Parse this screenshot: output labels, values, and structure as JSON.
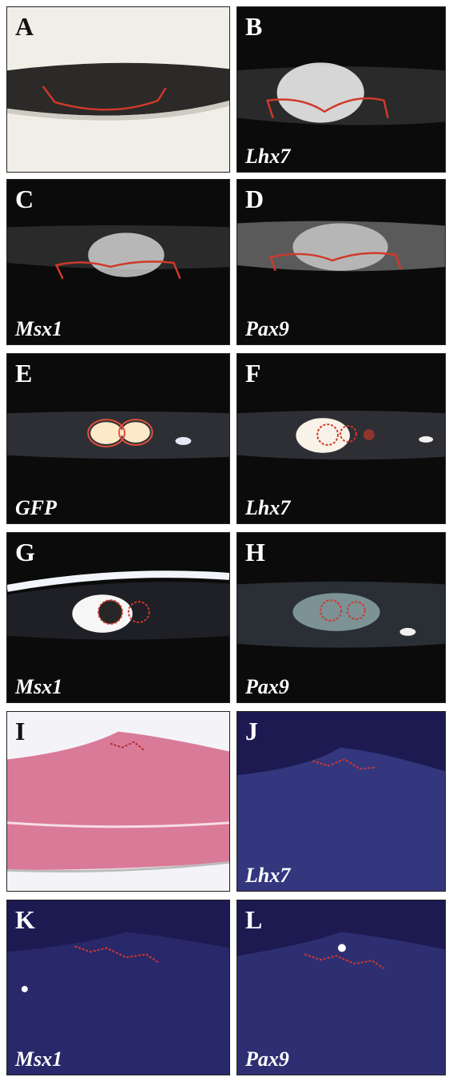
{
  "panels": [
    {
      "letter": "A",
      "gene": ""
    },
    {
      "letter": "B",
      "gene": "Lhx7"
    },
    {
      "letter": "C",
      "gene": "Msx1"
    },
    {
      "letter": "D",
      "gene": "Pax9"
    },
    {
      "letter": "E",
      "gene": "GFP"
    },
    {
      "letter": "F",
      "gene": "Lhx7"
    },
    {
      "letter": "G",
      "gene": "Msx1"
    },
    {
      "letter": "H",
      "gene": "Pax9"
    },
    {
      "letter": "I",
      "gene": ""
    },
    {
      "letter": "J",
      "gene": "Lhx7"
    },
    {
      "letter": "K",
      "gene": "Msx1"
    },
    {
      "letter": "L",
      "gene": "Pax9"
    }
  ],
  "colors": {
    "darkfield": "#0b0b0b",
    "darkfield_blue": "#1d1a52",
    "brightfield": "#f1eee8",
    "he_stain": "#d97a98",
    "outline_red": "#d0392b",
    "signal": "#f4f4f4"
  }
}
